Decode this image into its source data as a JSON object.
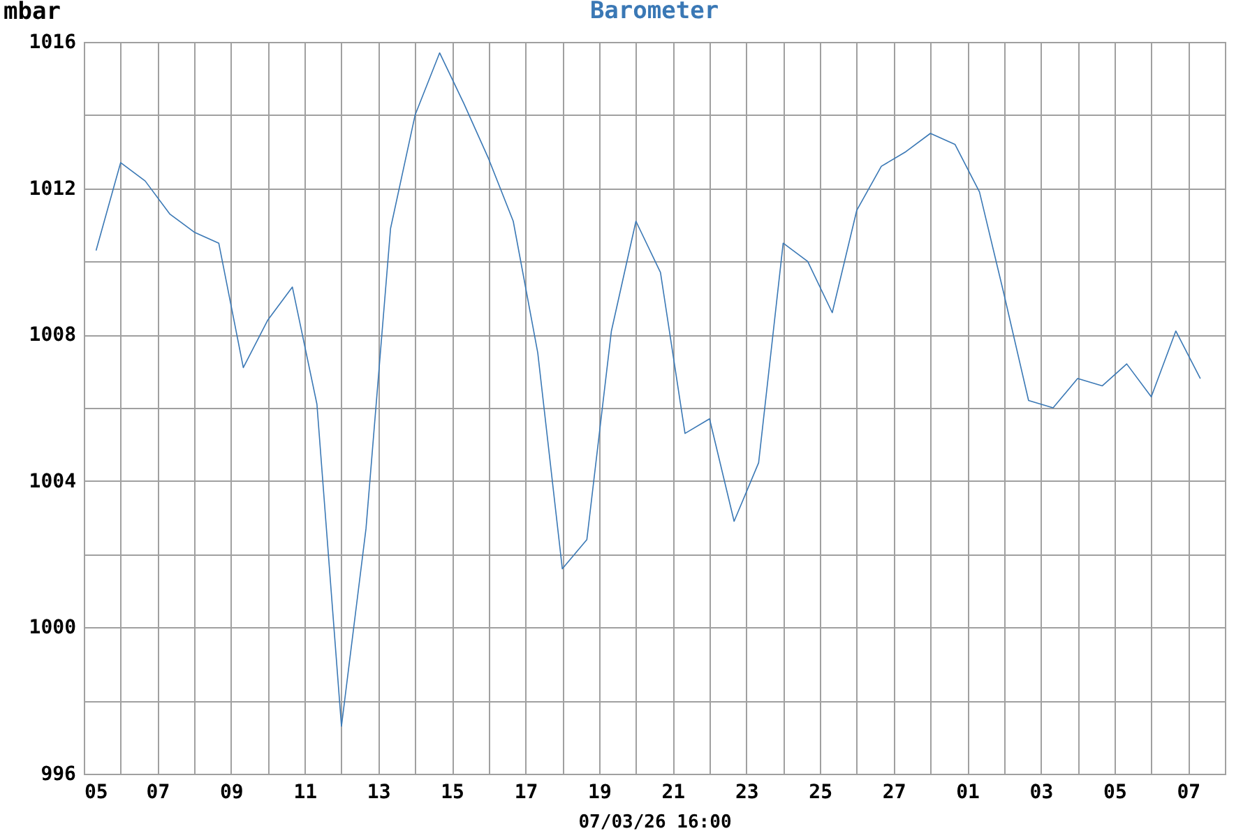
{
  "chart_data": {
    "type": "line",
    "title": "Barometer",
    "xlabel": "07/03/26 16:00",
    "ylabel": "mbar",
    "x": [
      "--02-05T08:00",
      "--02-06T00:00",
      "--02-06T16:00",
      "--02-07T08:00",
      "--02-08T00:00",
      "--02-08T16:00",
      "--02-09T08:00",
      "--02-10T00:00",
      "--02-10T16:00",
      "--02-11T08:00",
      "--02-12T00:00",
      "--02-12T16:00",
      "--02-13T08:00",
      "--02-14T00:00",
      "--02-14T16:00",
      "--02-15T08:00",
      "--02-16T00:00",
      "--02-16T16:00",
      "--02-17T08:00",
      "--02-18T00:00",
      "--02-18T16:00",
      "--02-19T08:00",
      "--02-20T00:00",
      "--02-20T16:00",
      "--02-21T08:00",
      "--02-22T00:00",
      "--02-22T16:00",
      "--02-23T08:00",
      "--02-24T00:00",
      "--02-24T16:00",
      "--02-25T08:00",
      "--02-26T00:00",
      "--02-26T16:00",
      "--02-27T08:00",
      "--02-28T00:00",
      "--02-28T16:00",
      "--03-01T08:00",
      "--03-02T00:00",
      "--03-02T16:00",
      "--03-03T08:00",
      "--03-04T00:00",
      "--03-04T16:00",
      "--03-05T08:00",
      "--03-06T00:00",
      "--03-06T16:00",
      "--03-07T08:00"
    ],
    "series": [
      {
        "color": "#3a78b5",
        "values": [
          1010.3,
          1012.7,
          1012.2,
          1011.3,
          1010.8,
          1010.5,
          1007.1,
          1008.4,
          1009.3,
          1006.1,
          997.3,
          1002.7,
          1010.9,
          1014.0,
          1015.7,
          1014.3,
          1012.8,
          1011.1,
          1007.5,
          1001.6,
          1002.4,
          1008.1,
          1011.1,
          1009.7,
          1005.3,
          1005.7,
          1002.9,
          1004.5,
          1010.5,
          1010.0,
          1008.6,
          1011.4,
          1012.6,
          1013.0,
          1013.5,
          1013.2,
          1011.9,
          1009.1,
          1006.2,
          1006.0,
          1006.8,
          1006.6,
          1007.2,
          1006.3,
          1008.1,
          1006.8
        ]
      }
    ],
    "xlim": [
      "--02-05",
      "--03-08"
    ],
    "xticks": [
      {
        "value": "--02-05",
        "label": "05"
      },
      {
        "value": "--02-06",
        "label": null
      },
      {
        "value": "--02-07",
        "label": "07"
      },
      {
        "value": "--02-08",
        "label": null
      },
      {
        "value": "--02-09",
        "label": "09"
      },
      {
        "value": "--02-10",
        "label": null
      },
      {
        "value": "--02-11",
        "label": "11"
      },
      {
        "value": "--02-12",
        "label": null
      },
      {
        "value": "--02-13",
        "label": "13"
      },
      {
        "value": "--02-14",
        "label": null
      },
      {
        "value": "--02-15",
        "label": "15"
      },
      {
        "value": "--02-16",
        "label": null
      },
      {
        "value": "--02-17",
        "label": "17"
      },
      {
        "value": "--02-18",
        "label": null
      },
      {
        "value": "--02-19",
        "label": "19"
      },
      {
        "value": "--02-20",
        "label": null
      },
      {
        "value": "--02-21",
        "label": "21"
      },
      {
        "value": "--02-22",
        "label": null
      },
      {
        "value": "--02-23",
        "label": "23"
      },
      {
        "value": "--02-24",
        "label": null
      },
      {
        "value": "--02-25",
        "label": "25"
      },
      {
        "value": "--02-26",
        "label": null
      },
      {
        "value": "--02-27",
        "label": "27"
      },
      {
        "value": "--02-28",
        "label": null
      },
      {
        "value": "--03-01",
        "label": "01"
      },
      {
        "value": "--03-02",
        "label": null
      },
      {
        "value": "--03-03",
        "label": "03"
      },
      {
        "value": "--03-04",
        "label": null
      },
      {
        "value": "--03-05",
        "label": "05"
      },
      {
        "value": "--03-06",
        "label": null
      },
      {
        "value": "--03-07",
        "label": "07"
      }
    ],
    "ylim": [
      996,
      1016
    ],
    "yticks": [
      996,
      {
        "value": 998,
        "label": null
      },
      1000,
      {
        "value": 1002,
        "label": null
      },
      1004,
      {
        "value": 1006,
        "label": null
      },
      1008,
      {
        "value": 1010,
        "label": null
      },
      1012,
      {
        "value": 1014,
        "label": null
      },
      1016
    ],
    "grid": true,
    "marker": "none",
    "line_style": "solid"
  }
}
